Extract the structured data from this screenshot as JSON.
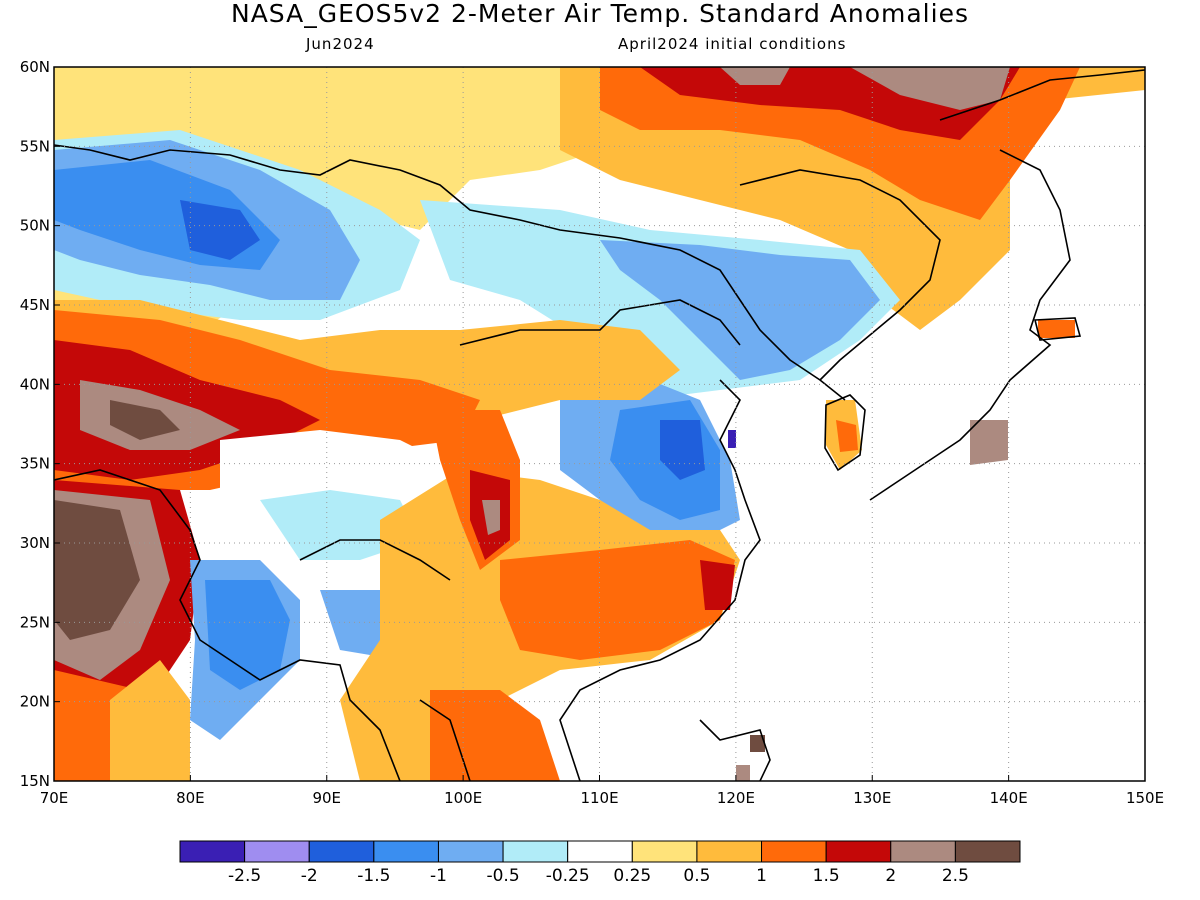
{
  "header": {
    "title": "NASA_GEOS5v2 2-Meter Air Temp. Standard Anomalies",
    "subtitle_left": "Jun2024",
    "subtitle_right": "April2024 initial conditions"
  },
  "map": {
    "lon_range": [
      70,
      150
    ],
    "lat_range": [
      15,
      60
    ],
    "lat_ticks": [
      {
        "value": 60,
        "label": "60N"
      },
      {
        "value": 55,
        "label": "55N"
      },
      {
        "value": 50,
        "label": "50N"
      },
      {
        "value": 45,
        "label": "45N"
      },
      {
        "value": 40,
        "label": "40N"
      },
      {
        "value": 35,
        "label": "35N"
      },
      {
        "value": 30,
        "label": "30N"
      },
      {
        "value": 25,
        "label": "25N"
      },
      {
        "value": 20,
        "label": "20N"
      },
      {
        "value": 15,
        "label": "15N"
      }
    ],
    "lon_ticks": [
      {
        "value": 70,
        "label": "70E"
      },
      {
        "value": 80,
        "label": "80E"
      },
      {
        "value": 90,
        "label": "90E"
      },
      {
        "value": 100,
        "label": "100E"
      },
      {
        "value": 110,
        "label": "110E"
      },
      {
        "value": 120,
        "label": "120E"
      },
      {
        "value": 130,
        "label": "130E"
      },
      {
        "value": 140,
        "label": "140E"
      },
      {
        "value": 150,
        "label": "150E"
      }
    ],
    "grid": "dotted"
  },
  "colorbar": {
    "colors": [
      "#3a1fb4",
      "#9f8df0",
      "#1f5fdc",
      "#3a8ef0",
      "#6fadf2",
      "#b1ecf8",
      "#ffffff",
      "#ffe37a",
      "#ffbb3c",
      "#ff6a0a",
      "#c40808",
      "#ac8a80",
      "#6f4c40"
    ],
    "labels": [
      "-2.5",
      "-2",
      "-1.5",
      "-1",
      "-0.5",
      "-0.25",
      "0.25",
      "0.5",
      "1",
      "1.5",
      "2",
      "2.5"
    ]
  }
}
